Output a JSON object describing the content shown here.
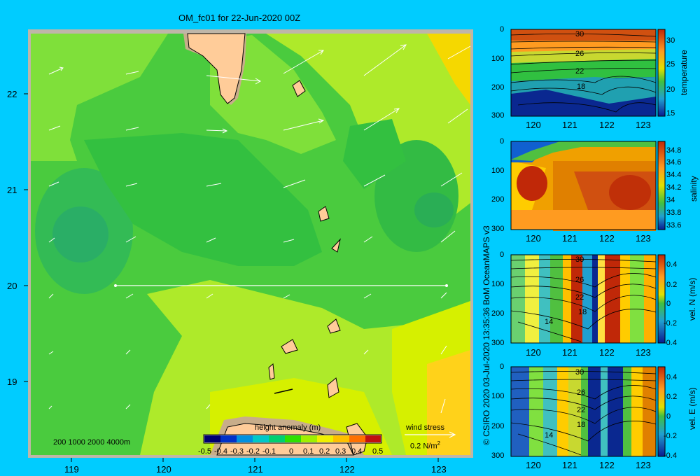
{
  "map": {
    "title": "OM_fc01 for 22-Jun-2020 00Z",
    "lon_ticks": [
      "119",
      "120",
      "121",
      "122",
      "123"
    ],
    "lat_ticks": [
      "22",
      "21",
      "20",
      "19"
    ],
    "depth_legend": "200  1000  2000  4000m",
    "colorbar": {
      "title": "height anomaly (m)",
      "labels": [
        "-0.5",
        "-0.4",
        "-0.3",
        "-0.2",
        "-0.1",
        "0",
        "0.1",
        "0.2",
        "0.3",
        "0.4",
        "0.5"
      ],
      "colors": [
        "#000070",
        "#0030c8",
        "#0090e0",
        "#00c8c8",
        "#00d070",
        "#30e000",
        "#a0f000",
        "#f0f000",
        "#ffc000",
        "#ff7000",
        "#c01010"
      ]
    },
    "wind": {
      "title": "wind stress",
      "scale": "0.2 N/m",
      "sup": "2"
    }
  },
  "copyright": "© CSIRO 2020   03-Jul-2020 13:35:36 BoM OceanMAPS v3",
  "panels": [
    {
      "key": "temperature",
      "label": "temperature",
      "y_ticks": [
        "0",
        "100",
        "200",
        "300"
      ],
      "x_ticks": [
        "120",
        "121",
        "122",
        "123"
      ],
      "cb_labels": [
        "30",
        "25",
        "20",
        "15"
      ],
      "contours": [
        "30",
        "26",
        "22",
        "18"
      ]
    },
    {
      "key": "salinity",
      "label": "salinity",
      "y_ticks": [
        "0",
        "100",
        "200",
        "300"
      ],
      "x_ticks": [
        "120",
        "121",
        "122",
        "123"
      ],
      "cb_labels": [
        "34.8",
        "34.6",
        "34.4",
        "34.2",
        "34",
        "33.8",
        "33.6"
      ],
      "contours": []
    },
    {
      "key": "veln",
      "label": "vel. N (m/s)",
      "y_ticks": [
        "0",
        "100",
        "200",
        "300"
      ],
      "x_ticks": [
        "120",
        "121",
        "122",
        "123"
      ],
      "cb_labels": [
        "0.4",
        "0.2",
        "0",
        "-0.2",
        "-0.4"
      ],
      "contours": [
        "30",
        "26",
        "22",
        "18",
        "14"
      ]
    },
    {
      "key": "vele",
      "label": "vel. E (m/s)",
      "y_ticks": [
        "0",
        "100",
        "200",
        "300"
      ],
      "x_ticks": [
        "120",
        "121",
        "122",
        "123"
      ],
      "cb_labels": [
        "0.4",
        "0.2",
        "0",
        "-0.2",
        "-0.4"
      ],
      "contours": [
        "30",
        "26",
        "22",
        "18",
        "14"
      ]
    }
  ]
}
